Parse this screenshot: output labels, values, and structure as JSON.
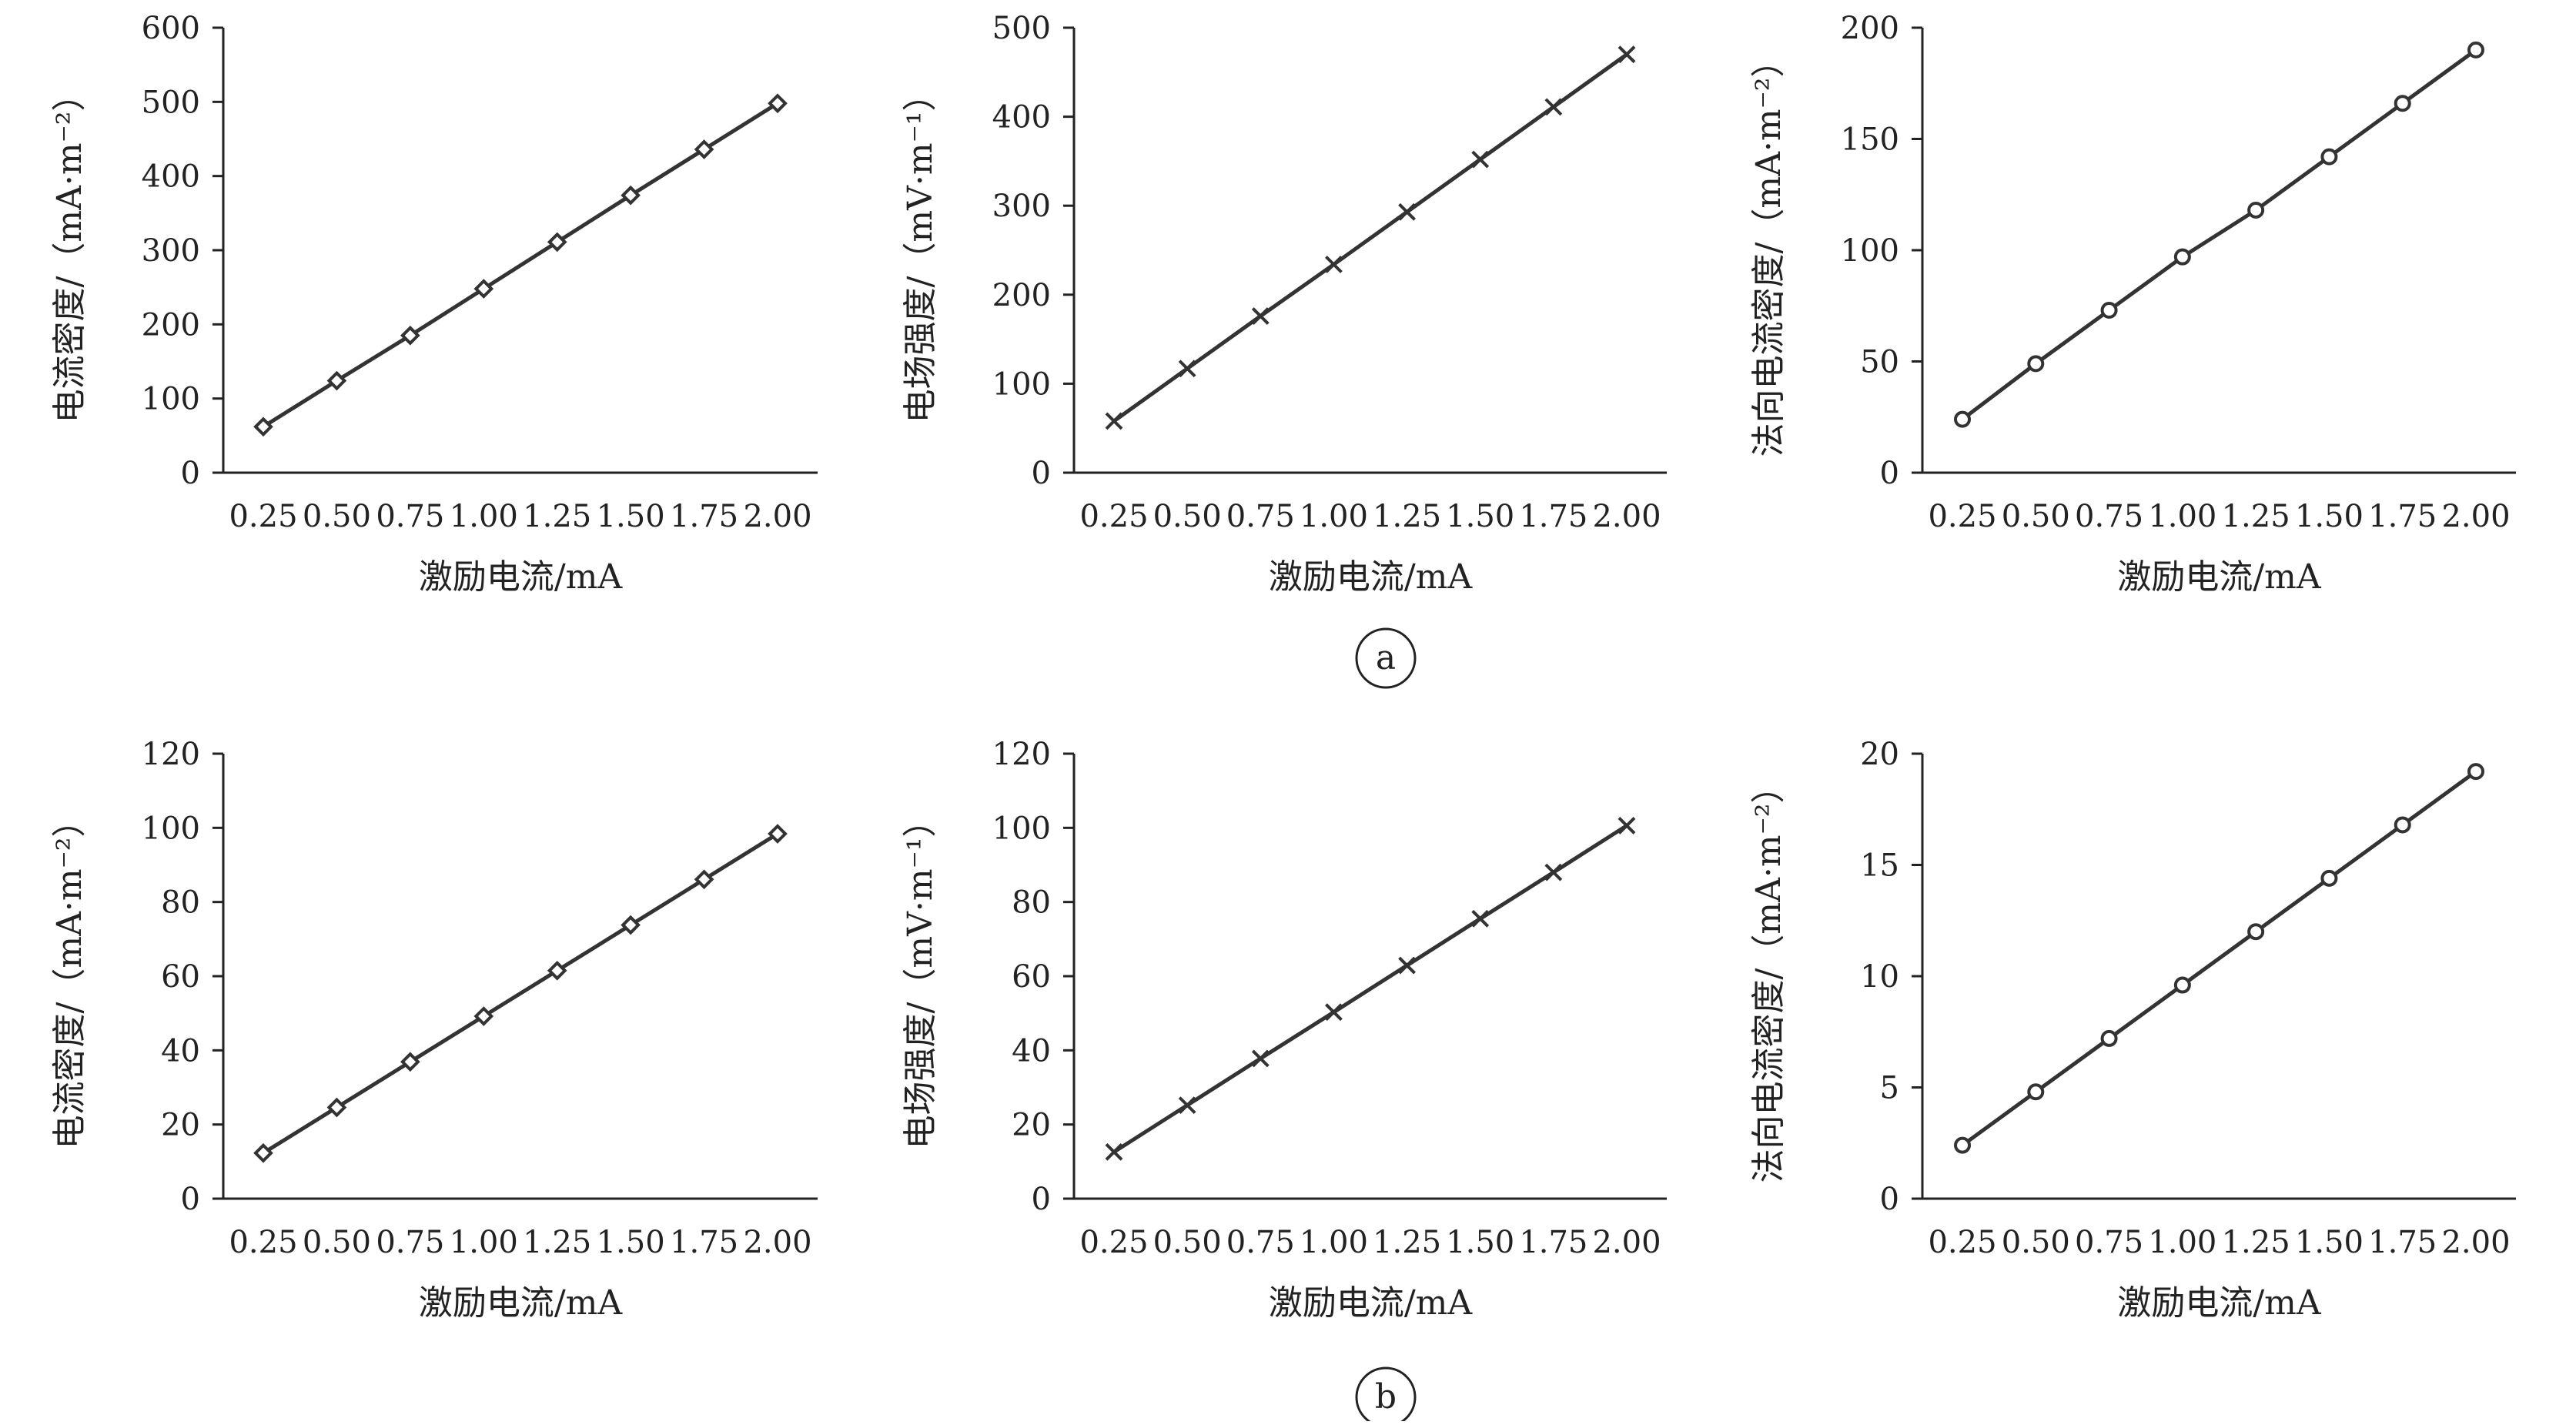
{
  "chart_data": [
    {
      "panel": "a",
      "type": "line",
      "marker": "diamond",
      "x": [
        0.25,
        0.5,
        0.75,
        1.0,
        1.25,
        1.5,
        1.75,
        2.0
      ],
      "series": [
        {
          "values": [
            62,
            124,
            185,
            248,
            311,
            374,
            436,
            498
          ]
        }
      ],
      "xlabel": "激励电流/mA",
      "ylabel": "电流密度/（mA·m⁻²）",
      "ylim": [
        0,
        600
      ],
      "yticks": [
        0,
        100,
        200,
        300,
        400,
        500,
        600
      ],
      "xticks": [
        "0.25",
        "0.50",
        "0.75",
        "1.00",
        "1.25",
        "1.50",
        "1.75",
        "2.00"
      ],
      "yticklabels": [
        "0",
        "100",
        "200",
        "300",
        "400",
        "500",
        "600"
      ],
      "grid": false
    },
    {
      "panel": "a",
      "type": "line",
      "marker": "x",
      "x": [
        0.25,
        0.5,
        0.75,
        1.0,
        1.25,
        1.5,
        1.75,
        2.0
      ],
      "series": [
        {
          "values": [
            58,
            117,
            176,
            234,
            293,
            352,
            411,
            470
          ]
        }
      ],
      "xlabel": "激励电流/mA",
      "ylabel": "电场强度/（mV·m⁻¹）",
      "ylim": [
        0,
        500
      ],
      "yticks": [
        0,
        100,
        200,
        300,
        400,
        500
      ],
      "xticks": [
        "0.25",
        "0.50",
        "0.75",
        "1.00",
        "1.25",
        "1.50",
        "1.75",
        "2.00"
      ],
      "yticklabels": [
        "0",
        "100",
        "200",
        "300",
        "400",
        "500"
      ],
      "grid": false
    },
    {
      "panel": "a",
      "type": "line",
      "marker": "circle",
      "x": [
        0.25,
        0.5,
        0.75,
        1.0,
        1.25,
        1.5,
        1.75,
        2.0
      ],
      "series": [
        {
          "values": [
            24,
            49,
            73,
            97,
            118,
            142,
            166,
            190
          ]
        }
      ],
      "xlabel": "激励电流/mA",
      "ylabel": "法向电流密度/（mA·m⁻²）",
      "ylim": [
        0,
        200
      ],
      "yticks": [
        0,
        50,
        100,
        150,
        200
      ],
      "xticks": [
        "0.25",
        "0.50",
        "0.75",
        "1.00",
        "1.25",
        "1.50",
        "1.75",
        "2.00"
      ],
      "yticklabels": [
        "0",
        "50",
        "100",
        "150",
        "200"
      ],
      "grid": false
    },
    {
      "panel": "b",
      "type": "line",
      "marker": "diamond",
      "x": [
        0.25,
        0.5,
        0.75,
        1.0,
        1.25,
        1.5,
        1.75,
        2.0
      ],
      "series": [
        {
          "values": [
            12.3,
            24.6,
            36.9,
            49.2,
            61.5,
            73.8,
            86.1,
            98.4
          ]
        }
      ],
      "xlabel": "激励电流/mA",
      "ylabel": "电流密度/（mA·m⁻²）",
      "ylim": [
        0,
        120
      ],
      "yticks": [
        0,
        20,
        40,
        60,
        80,
        100,
        120
      ],
      "xticks": [
        "0.25",
        "0.50",
        "0.75",
        "1.00",
        "1.25",
        "1.50",
        "1.75",
        "2.00"
      ],
      "yticklabels": [
        "0",
        "20",
        "40",
        "60",
        "80",
        "100",
        "120"
      ],
      "grid": false
    },
    {
      "panel": "b",
      "type": "line",
      "marker": "x",
      "x": [
        0.25,
        0.5,
        0.75,
        1.0,
        1.25,
        1.5,
        1.75,
        2.0
      ],
      "series": [
        {
          "values": [
            12.6,
            25.2,
            37.8,
            50.3,
            62.9,
            75.5,
            88.0,
            100.6
          ]
        }
      ],
      "xlabel": "激励电流/mA",
      "ylabel": "电场强度/（mV·m⁻¹）",
      "ylim": [
        0,
        120
      ],
      "yticks": [
        0,
        20,
        40,
        60,
        80,
        100,
        120
      ],
      "xticks": [
        "0.25",
        "0.50",
        "0.75",
        "1.00",
        "1.25",
        "1.50",
        "1.75",
        "2.00"
      ],
      "yticklabels": [
        "0",
        "20",
        "40",
        "60",
        "80",
        "100",
        "120"
      ],
      "grid": false
    },
    {
      "panel": "b",
      "type": "line",
      "marker": "circle",
      "x": [
        0.25,
        0.5,
        0.75,
        1.0,
        1.25,
        1.5,
        1.75,
        2.0
      ],
      "series": [
        {
          "values": [
            2.4,
            4.8,
            7.2,
            9.6,
            12.0,
            14.4,
            16.8,
            19.2
          ]
        }
      ],
      "xlabel": "激励电流/mA",
      "ylabel": "法向电流密度/（mA·m⁻²）",
      "ylim": [
        0,
        20
      ],
      "yticks": [
        0,
        5,
        10,
        15,
        20
      ],
      "xticks": [
        "0.25",
        "0.50",
        "0.75",
        "1.00",
        "1.25",
        "1.50",
        "1.75",
        "2.00"
      ],
      "yticklabels": [
        "0",
        "5",
        "10",
        "15",
        "20"
      ],
      "grid": false
    }
  ],
  "panel_labels": [
    "a",
    "b"
  ],
  "colors": {
    "line": "#333333",
    "marker": "#333333",
    "axis": "#222222"
  }
}
